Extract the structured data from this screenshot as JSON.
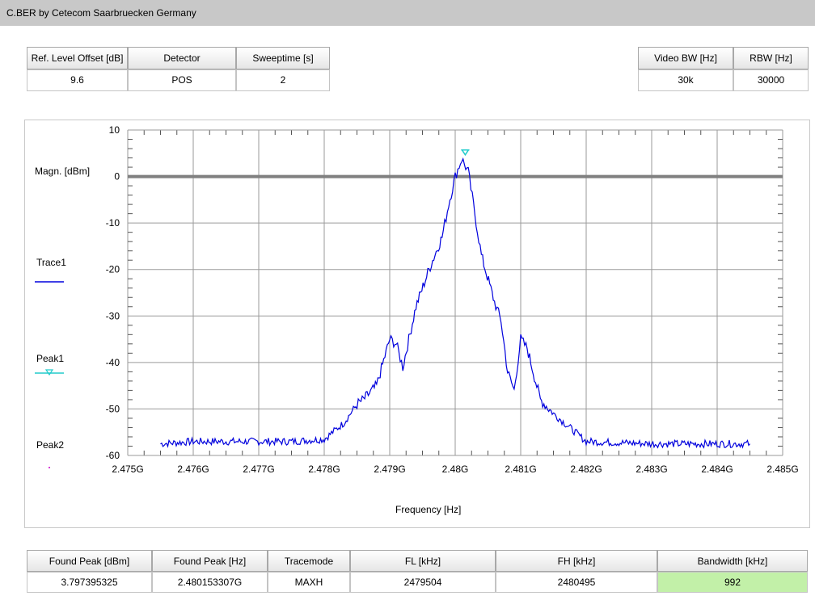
{
  "app": {
    "title": "C.BER by Cetecom Saarbruecken Germany"
  },
  "top_left_params": [
    {
      "label": "Ref. Level Offset [dB]",
      "value": "9.6"
    },
    {
      "label": "Detector",
      "value": "POS"
    },
    {
      "label": "Sweeptime [s]",
      "value": "2"
    }
  ],
  "top_right_params": [
    {
      "label": "Video BW [Hz]",
      "value": "30k"
    },
    {
      "label": "RBW [Hz]",
      "value": "30000"
    }
  ],
  "legend": {
    "ylabel": "Magn. [dBm]",
    "trace1": "Trace1",
    "peak1": "Peak1",
    "peak2": "Peak2"
  },
  "results": [
    {
      "label": "Found Peak [dBm]",
      "value": "3.797395325"
    },
    {
      "label": "Found Peak [Hz]",
      "value": "2.480153307G"
    },
    {
      "label": "Tracemode",
      "value": "MAXH"
    },
    {
      "label": "FL [kHz]",
      "value": "2479504"
    },
    {
      "label": "FH [kHz]",
      "value": "2480495"
    },
    {
      "label": "Bandwidth [kHz]",
      "value": "992"
    }
  ],
  "colors": {
    "trace": "#0000dd",
    "peak_marker": "#22cccc",
    "reference_line": "#808080",
    "grid": "#9a9a9a",
    "highlight": "#c2f0a8"
  },
  "chart_data": {
    "type": "line",
    "xlabel": "Frequency [Hz]",
    "ylabel": "Magn. [dBm]",
    "xlim": [
      2.475,
      2.485
    ],
    "ylim": [
      -60,
      10
    ],
    "x_unit": "GHz",
    "xticks": [
      "2.475G",
      "2.476G",
      "2.477G",
      "2.478G",
      "2.479G",
      "2.48G",
      "2.481G",
      "2.482G",
      "2.483G",
      "2.484G",
      "2.485G"
    ],
    "yticks": [
      "10",
      "0",
      "-10",
      "-20",
      "-30",
      "-40",
      "-50",
      "-60"
    ],
    "grid": true,
    "reference_line_dbm": 0,
    "series": [
      {
        "name": "Trace1",
        "x": [
          2.4755,
          2.476,
          2.4765,
          2.477,
          2.4775,
          2.478,
          2.4783,
          2.4785,
          2.4786,
          2.4788,
          2.479,
          2.4791,
          2.4792,
          2.4794,
          2.4796,
          2.4798,
          2.4799,
          2.48,
          2.4801,
          2.4802,
          2.4803,
          2.4804,
          2.4806,
          2.4807,
          2.4808,
          2.4809,
          2.481,
          2.4811,
          2.4813,
          2.4815,
          2.482,
          2.483,
          2.484,
          2.4845
        ],
        "y": [
          -57.5,
          -57,
          -57,
          -57,
          -57,
          -56.5,
          -53,
          -49,
          -48,
          -45,
          -35,
          -36,
          -41,
          -28,
          -20,
          -13,
          -6,
          0,
          3.8,
          1,
          -8,
          -17,
          -27,
          -31,
          -42,
          -46,
          -35,
          -37,
          -48,
          -51,
          -57,
          -57.5,
          -57.5,
          -57.5
        ]
      }
    ],
    "peaks": [
      {
        "name": "Peak1",
        "x": 2.4801533,
        "y": 3.797
      }
    ]
  }
}
